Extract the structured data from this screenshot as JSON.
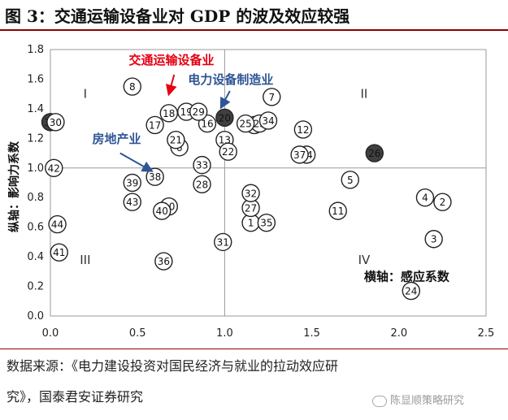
{
  "title": "图 3：交通运输设备业对 GDP 的波及效应较强",
  "source_line1": "数据来源：《电力建设投资对国民经济与就业的拉动效应研",
  "source_line2": "究》，国泰君安证券研究",
  "watermark": "陈显顺策略研究",
  "colors": {
    "rule": "#8B0000",
    "red_annot": "#e60012",
    "blue_annot": "#2f5597",
    "highlight": "#404040"
  },
  "chart_data": {
    "type": "scatter",
    "xlabel": "横轴：感应系数",
    "ylabel": "纵轴：影响力系数",
    "xlim": [
      0,
      2.5
    ],
    "ylim": [
      0,
      1.8
    ],
    "xticks": [
      "0.0",
      "0.5",
      "1.0",
      "1.5",
      "2.0",
      "2.5"
    ],
    "yticks": [
      "0.0",
      "0.2",
      "0.4",
      "0.6",
      "0.8",
      "1.0",
      "1.2",
      "1.4",
      "1.6",
      "1.8"
    ],
    "divider_x": 1.0,
    "divider_y": 1.0,
    "grid": false,
    "quadrants": [
      {
        "label": "I",
        "x": 0.2,
        "y": 1.5
      },
      {
        "label": "II",
        "x": 1.8,
        "y": 1.5
      },
      {
        "label": "III",
        "x": 0.2,
        "y": 0.38
      },
      {
        "label": "IV",
        "x": 1.8,
        "y": 0.38
      }
    ],
    "points": [
      {
        "id": "1",
        "x": 1.15,
        "y": 0.63
      },
      {
        "id": "2",
        "x": 2.25,
        "y": 0.77
      },
      {
        "id": "3",
        "x": 2.2,
        "y": 0.52
      },
      {
        "id": "4",
        "x": 2.15,
        "y": 0.8
      },
      {
        "id": "5",
        "x": 1.72,
        "y": 0.92
      },
      {
        "id": "6",
        "x": 0.74,
        "y": 1.14
      },
      {
        "id": "7",
        "x": 1.27,
        "y": 1.48
      },
      {
        "id": "8",
        "x": 0.47,
        "y": 1.55
      },
      {
        "id": "10",
        "x": 0.68,
        "y": 0.74
      },
      {
        "id": "11",
        "x": 1.65,
        "y": 0.71
      },
      {
        "id": "12",
        "x": 1.45,
        "y": 1.26
      },
      {
        "id": "13",
        "x": 1.0,
        "y": 1.19
      },
      {
        "id": "14",
        "x": 1.47,
        "y": 1.09
      },
      {
        "id": "15",
        "x": 1.17,
        "y": 1.29
      },
      {
        "id": "16",
        "x": 0.9,
        "y": 1.3
      },
      {
        "id": "17",
        "x": 0.6,
        "y": 1.29
      },
      {
        "id": "18",
        "x": 0.68,
        "y": 1.37
      },
      {
        "id": "19",
        "x": 0.78,
        "y": 1.38
      },
      {
        "id": "20",
        "x": 1.0,
        "y": 1.34,
        "highlight": true
      },
      {
        "id": "21",
        "x": 0.72,
        "y": 1.19
      },
      {
        "id": "22",
        "x": 1.02,
        "y": 1.11
      },
      {
        "id": "23",
        "x": 1.2,
        "y": 1.3
      },
      {
        "id": "24",
        "x": 2.07,
        "y": 0.17
      },
      {
        "id": "25",
        "x": 1.12,
        "y": 1.3
      },
      {
        "id": "26",
        "x": 1.86,
        "y": 1.1,
        "highlight": true
      },
      {
        "id": "27",
        "x": 1.15,
        "y": 0.73
      },
      {
        "id": "28",
        "x": 0.87,
        "y": 0.89
      },
      {
        "id": "29",
        "x": 0.85,
        "y": 1.38
      },
      {
        "id": "30",
        "x": 0.0,
        "y": 1.31,
        "highlight": true
      },
      {
        "id": "30",
        "x": 0.03,
        "y": 1.31
      },
      {
        "id": "31",
        "x": 0.99,
        "y": 0.5
      },
      {
        "id": "32",
        "x": 1.15,
        "y": 0.83
      },
      {
        "id": "33",
        "x": 0.87,
        "y": 1.02
      },
      {
        "id": "34",
        "x": 1.25,
        "y": 1.32
      },
      {
        "id": "35",
        "x": 1.24,
        "y": 0.63
      },
      {
        "id": "36",
        "x": 0.65,
        "y": 0.37
      },
      {
        "id": "37",
        "x": 1.43,
        "y": 1.09
      },
      {
        "id": "38",
        "x": 0.6,
        "y": 0.94
      },
      {
        "id": "39",
        "x": 0.47,
        "y": 0.9
      },
      {
        "id": "40",
        "x": 0.64,
        "y": 0.71
      },
      {
        "id": "41",
        "x": 0.05,
        "y": 0.43
      },
      {
        "id": "42",
        "x": 0.02,
        "y": 1.0
      },
      {
        "id": "43",
        "x": 0.47,
        "y": 0.77
      },
      {
        "id": "44",
        "x": 0.04,
        "y": 0.62
      }
    ],
    "annotations": [
      {
        "text": "交通运输设备业",
        "color": "red",
        "x": 0.45,
        "y": 1.7,
        "arrow_to": [
          0.68,
          1.5
        ],
        "arrow_from": [
          0.71,
          1.63
        ]
      },
      {
        "text": "电力设备制造业",
        "color": "blue",
        "x": 0.79,
        "y": 1.57,
        "arrow_to": [
          0.98,
          1.41
        ],
        "arrow_from": [
          1.03,
          1.52
        ]
      },
      {
        "text": "房地产业",
        "color": "blue",
        "x": 0.24,
        "y": 1.17,
        "arrow_to": [
          0.58,
          0.98
        ],
        "arrow_from": [
          0.4,
          1.1
        ]
      }
    ]
  }
}
